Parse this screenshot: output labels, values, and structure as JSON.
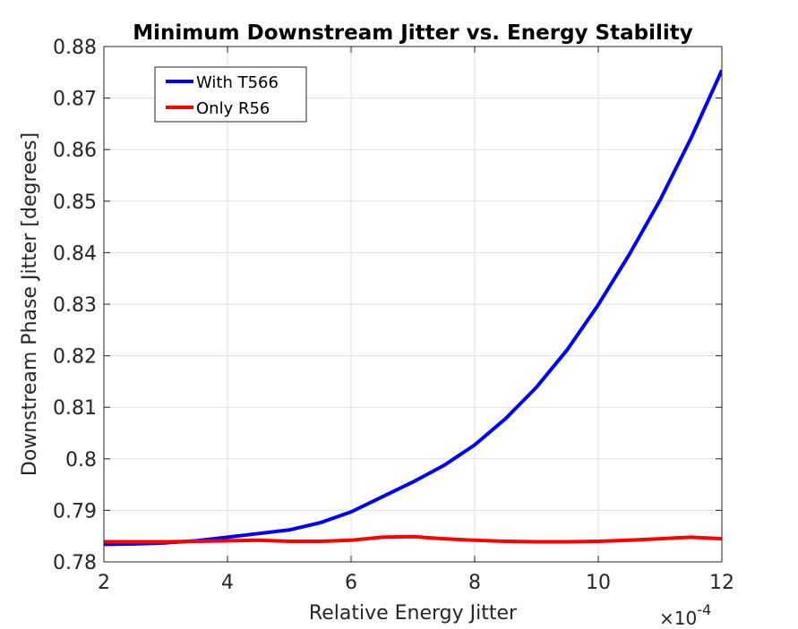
{
  "chart_data": {
    "type": "line",
    "title": "Minimum Downstream Jitter vs. Energy Stability",
    "xlabel": "Relative Energy Jitter",
    "ylabel": "Downstream Phase Jitter [degrees]",
    "x_exponent_label": {
      "times": "×",
      "base": "10",
      "power": "-4"
    },
    "xlim": [
      2,
      12
    ],
    "ylim": [
      0.78,
      0.88
    ],
    "xticks": [
      2,
      4,
      6,
      8,
      10,
      12
    ],
    "xtick_labels": [
      "2",
      "4",
      "6",
      "8",
      "10",
      "12"
    ],
    "yticks": [
      0.78,
      0.79,
      0.8,
      0.81,
      0.82,
      0.83,
      0.84,
      0.85,
      0.86,
      0.87,
      0.88
    ],
    "ytick_labels": [
      "0.78",
      "0.79",
      "0.8",
      "0.81",
      "0.82",
      "0.83",
      "0.84",
      "0.85",
      "0.86",
      "0.87",
      "0.88"
    ],
    "grid": true,
    "legend_position": "top-left",
    "x": [
      2,
      2.5,
      3,
      3.5,
      4,
      4.5,
      5,
      5.5,
      6,
      6.5,
      7,
      7.5,
      8,
      8.5,
      9,
      9.5,
      10,
      10.5,
      11,
      11.5,
      12
    ],
    "series": [
      {
        "name": "With T566",
        "color": "#0000ff",
        "values": [
          0.7834,
          0.7835,
          0.7837,
          0.7841,
          0.7848,
          0.7855,
          0.7862,
          0.7876,
          0.7897,
          0.7926,
          0.7955,
          0.7987,
          0.8027,
          0.8078,
          0.8139,
          0.8212,
          0.8299,
          0.8396,
          0.8502,
          0.8622,
          0.8754
        ]
      },
      {
        "name": "Only R56",
        "color": "#ff0000",
        "values": [
          0.7839,
          0.7839,
          0.7839,
          0.784,
          0.7841,
          0.7842,
          0.784,
          0.784,
          0.7842,
          0.7848,
          0.7849,
          0.7845,
          0.7842,
          0.784,
          0.7839,
          0.7839,
          0.784,
          0.7842,
          0.7845,
          0.7848,
          0.7845
        ]
      }
    ]
  }
}
